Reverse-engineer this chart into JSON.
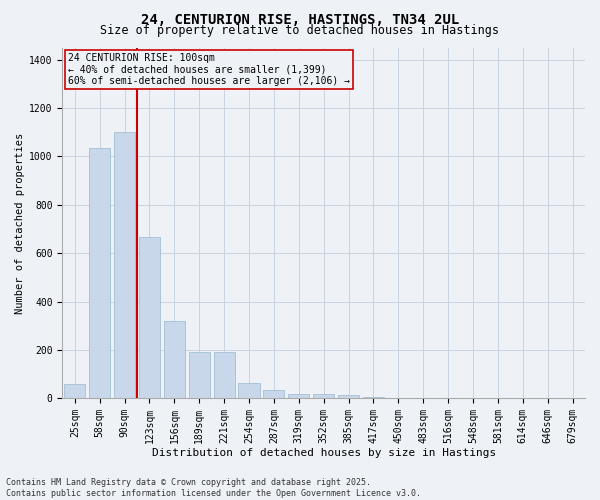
{
  "title_line1": "24, CENTURION RISE, HASTINGS, TN34 2UL",
  "title_line2": "Size of property relative to detached houses in Hastings",
  "xlabel": "Distribution of detached houses by size in Hastings",
  "ylabel": "Number of detached properties",
  "categories": [
    "25sqm",
    "58sqm",
    "90sqm",
    "123sqm",
    "156sqm",
    "189sqm",
    "221sqm",
    "254sqm",
    "287sqm",
    "319sqm",
    "352sqm",
    "385sqm",
    "417sqm",
    "450sqm",
    "483sqm",
    "516sqm",
    "548sqm",
    "581sqm",
    "614sqm",
    "646sqm",
    "679sqm"
  ],
  "values": [
    60,
    1035,
    1100,
    665,
    320,
    190,
    190,
    65,
    35,
    20,
    20,
    15,
    5,
    0,
    0,
    0,
    0,
    0,
    0,
    0,
    0
  ],
  "bar_color": "#c8d8ea",
  "bar_edge_color": "#9ab8d0",
  "grid_color": "#c8d4e0",
  "vline_color": "#cc0000",
  "vline_x_index": 2,
  "annotation_line1": "24 CENTURION RISE: 100sqm",
  "annotation_line2": "← 40% of detached houses are smaller (1,399)",
  "annotation_line3": "60% of semi-detached houses are larger (2,106) →",
  "annotation_box_color": "#cc0000",
  "ylim": [
    0,
    1450
  ],
  "yticks": [
    0,
    200,
    400,
    600,
    800,
    1000,
    1200,
    1400
  ],
  "footer_line1": "Contains HM Land Registry data © Crown copyright and database right 2025.",
  "footer_line2": "Contains public sector information licensed under the Open Government Licence v3.0.",
  "bg_color": "#eef2f7",
  "title1_fontsize": 10,
  "title2_fontsize": 8.5,
  "tick_fontsize": 7,
  "ylabel_fontsize": 7.5,
  "xlabel_fontsize": 8,
  "annot_fontsize": 7,
  "footer_fontsize": 6
}
